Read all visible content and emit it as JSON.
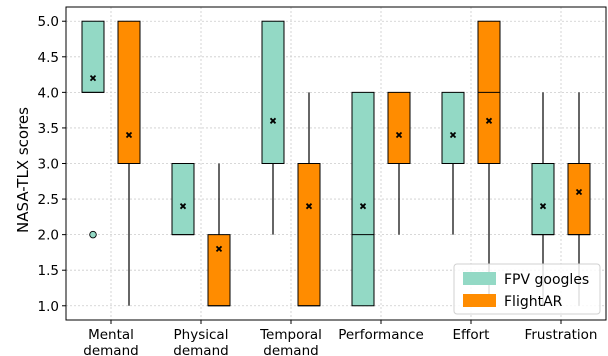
{
  "chart_data": {
    "type": "box",
    "ylabel": "NASA-TLX scores",
    "xlabel": "",
    "title": "",
    "ylim": [
      0.8,
      5.2
    ],
    "yticks": [
      "1.0",
      "1.5",
      "2.0",
      "2.5",
      "3.0",
      "3.5",
      "4.0",
      "4.5",
      "5.0"
    ],
    "grid": true,
    "legend_position": "bottom-right",
    "categories": [
      [
        "Mental",
        "demand"
      ],
      [
        "Physical",
        "demand"
      ],
      [
        "Temporal",
        "demand"
      ],
      [
        "Performance"
      ],
      [
        "Effort"
      ],
      [
        "Frustration"
      ]
    ],
    "series": [
      {
        "name": "FPV googles",
        "color": "#93d9c5",
        "boxes": [
          {
            "whisker_low": 4.0,
            "q1": 4.0,
            "median": 4.0,
            "q3": 5.0,
            "whisker_high": 5.0,
            "mean": 4.2,
            "outliers": [
              2.0
            ]
          },
          {
            "whisker_low": 2.0,
            "q1": 2.0,
            "median": 2.0,
            "q3": 3.0,
            "whisker_high": 3.0,
            "mean": 2.4,
            "outliers": []
          },
          {
            "whisker_low": 2.0,
            "q1": 3.0,
            "median": 3.0,
            "q3": 5.0,
            "whisker_high": 5.0,
            "mean": 3.6,
            "outliers": []
          },
          {
            "whisker_low": 1.0,
            "q1": 1.0,
            "median": 2.0,
            "q3": 4.0,
            "whisker_high": 4.0,
            "mean": 2.4,
            "outliers": []
          },
          {
            "whisker_low": 2.0,
            "q1": 3.0,
            "median": 3.0,
            "q3": 4.0,
            "whisker_high": 4.0,
            "mean": 3.4,
            "outliers": []
          },
          {
            "whisker_low": 1.0,
            "q1": 2.0,
            "median": 2.0,
            "q3": 3.0,
            "whisker_high": 4.0,
            "mean": 2.4,
            "outliers": []
          }
        ]
      },
      {
        "name": "FlightAR",
        "color": "#ff8c00",
        "boxes": [
          {
            "whisker_low": 1.0,
            "q1": 3.0,
            "median": 3.0,
            "q3": 5.0,
            "whisker_high": 5.0,
            "mean": 3.4,
            "outliers": []
          },
          {
            "whisker_low": 1.0,
            "q1": 1.0,
            "median": 1.0,
            "q3": 2.0,
            "whisker_high": 3.0,
            "mean": 1.8,
            "outliers": []
          },
          {
            "whisker_low": 1.0,
            "q1": 1.0,
            "median": 1.0,
            "q3": 3.0,
            "whisker_high": 4.0,
            "mean": 2.4,
            "outliers": []
          },
          {
            "whisker_low": 2.0,
            "q1": 3.0,
            "median": 3.0,
            "q3": 4.0,
            "whisker_high": 4.0,
            "mean": 3.4,
            "outliers": []
          },
          {
            "whisker_low": 1.0,
            "q1": 3.0,
            "median": 4.0,
            "q3": 5.0,
            "whisker_high": 5.0,
            "mean": 3.6,
            "outliers": []
          },
          {
            "whisker_low": 1.0,
            "q1": 2.0,
            "median": 2.0,
            "q3": 3.0,
            "whisker_high": 4.0,
            "mean": 2.6,
            "outliers": []
          }
        ]
      }
    ]
  }
}
